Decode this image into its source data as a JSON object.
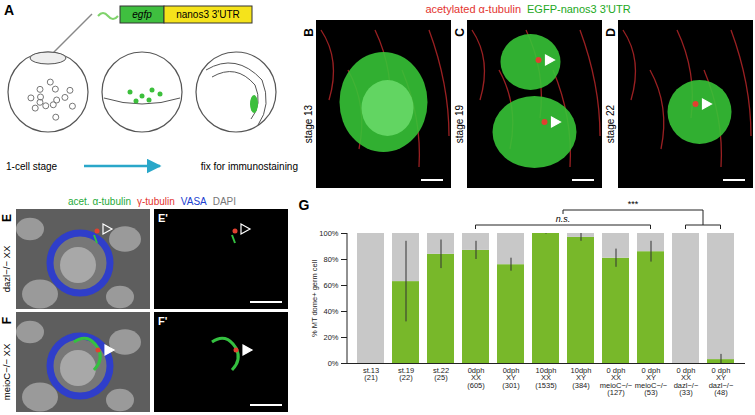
{
  "panels": {
    "A": {
      "letter": "A",
      "construct": [
        "egfp",
        "nanos3 3'UTR"
      ],
      "steps": [
        "1-cell stage",
        "fix for immunostaining"
      ]
    },
    "BD": {
      "letters": [
        "B",
        "C",
        "D"
      ],
      "channels": [
        "acetylated α-tubulin",
        "EGFP-nanos3 3'UTR"
      ],
      "stages": [
        "stage 13",
        "stage 19",
        "stage 22"
      ]
    },
    "EF": {
      "letters": [
        "E",
        "F"
      ],
      "merged_letters": [
        "E'",
        "F'"
      ],
      "channels": [
        "acet. α-tubulin",
        "γ-tubulin",
        "VASA",
        "DAPI"
      ],
      "genotypes": [
        "dazl−/− XX",
        "meioC−/− XX"
      ]
    },
    "G": {
      "letter": "G"
    }
  },
  "chart_data": {
    "type": "bar",
    "y_label": "% MT dome+ germ cell",
    "categories": [
      "st.13\n(21)",
      "st.19\n(22)",
      "st.22\n(25)",
      "0dph\nXX\n(605)",
      "0dph\nXY\n(301)",
      "10dph\nXX\n(1535)",
      "10dph\nXY\n(384)",
      "0 dph\nXX\nmeioC−/−\n(127)",
      "0 dph\nXY\nmeioC−/−\n(53)",
      "0 dph\nXX\ndazl−/−\n(33)",
      "0 dph\nXY\ndazl−/−\n(48)"
    ],
    "series": [
      {
        "color": "#78b82a",
        "values": [
          0,
          63,
          84,
          87,
          76,
          100,
          97,
          81,
          86,
          0,
          3
        ],
        "errors": [
          null,
          31,
          11,
          7,
          5,
          0.5,
          3,
          7,
          8,
          null,
          4
        ]
      },
      {
        "color": "#c8c8c8",
        "values": [
          100,
          37,
          16,
          13,
          24,
          0,
          3,
          19,
          14,
          100,
          97
        ]
      }
    ],
    "stacked": true,
    "ylim": [
      0,
      100
    ],
    "yticks": [
      {
        "value": 0,
        "label": "0%"
      },
      {
        "value": 20,
        "label": "20%"
      },
      {
        "value": 40,
        "label": "40%"
      },
      {
        "value": 60,
        "label": "60%"
      },
      {
        "value": 80,
        "label": "80%"
      },
      {
        "value": 100,
        "label": "100%"
      }
    ],
    "grid": false,
    "significance": [
      {
        "text": "n.s.",
        "groups": [
          [
            3,
            8
          ]
        ]
      },
      {
        "text": "***",
        "groups": [
          [
            3,
            8
          ],
          [
            9,
            10
          ]
        ]
      }
    ]
  }
}
